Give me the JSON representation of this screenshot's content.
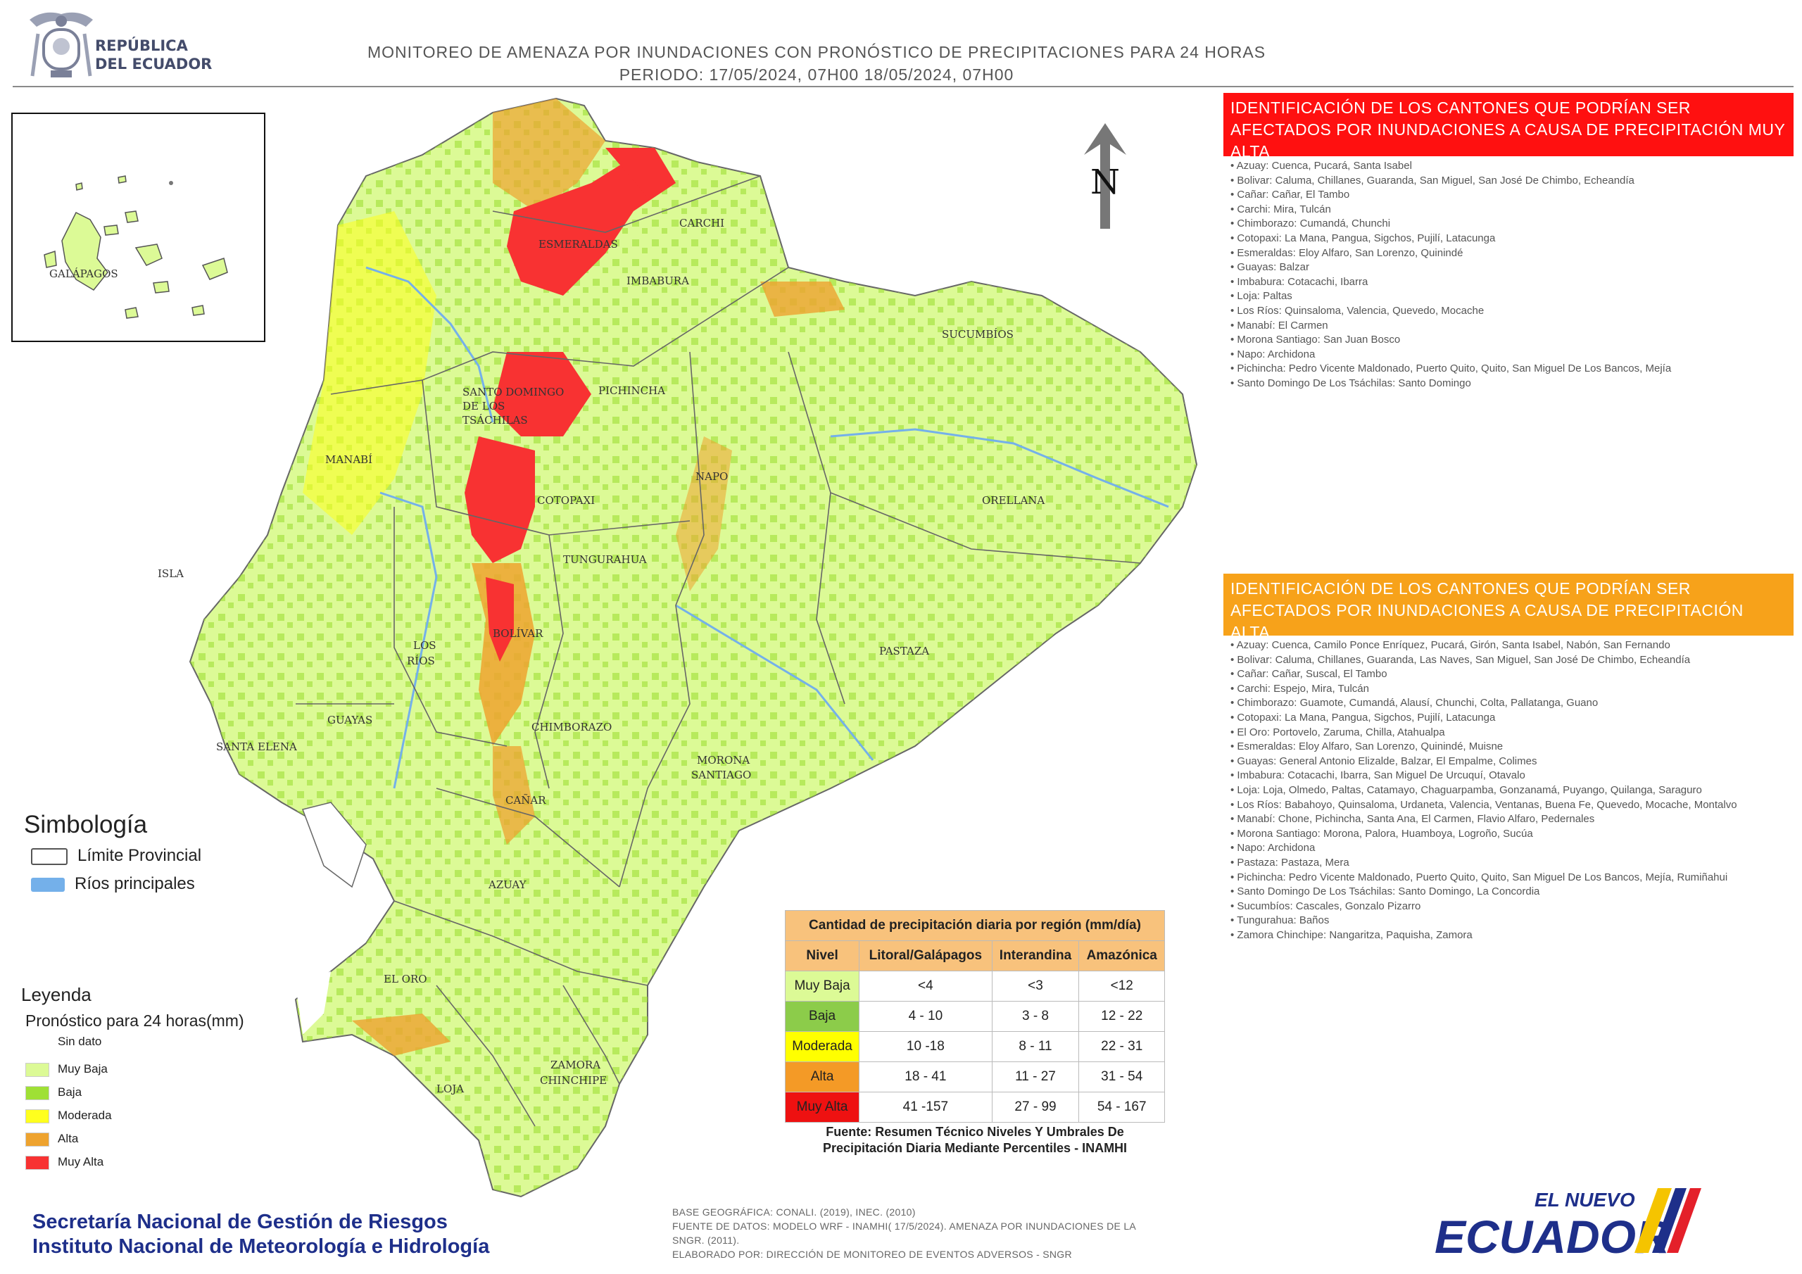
{
  "header": {
    "republic_line1": "REPÚBLICA",
    "republic_line2": "DEL ECUADOR",
    "title_line1": "MONITOREO DE AMENAZA POR INUNDACIONES  CON PRONÓSTICO DE  PRECIPITACIONES PARA 24 HORAS",
    "title_line2": "PERIODO: 17/05/2024, 07H00 18/05/2024, 07H00"
  },
  "map_labels": {
    "galapagos": "GALÁPAGOS",
    "isla": "ISLA",
    "esmeraldas": "ESMERALDAS",
    "carchi": "CARCHI",
    "imbabura": "IMBABURA",
    "sucumbios": "SUCUMBÍOS",
    "pichincha": "PICHINCHA",
    "santo_domingo_1": "SANTO DOMINGO",
    "santo_domingo_2": "DE LOS",
    "santo_domingo_3": "TSÁCHILAS",
    "manabi": "MANABÍ",
    "napo": "NAPO",
    "orellana": "ORELLANA",
    "cotopaxi": "COTOPAXI",
    "tungurahua": "TUNGURAHUA",
    "pastaza": "PASTAZA",
    "bolivar": "BOLÍVAR",
    "los_rios_1": "LOS",
    "los_rios_2": "RÍOS",
    "guayas": "GUAYAS",
    "santa_elena": "SANTA ELENA",
    "chimborazo": "CHIMBORAZO",
    "morona_1": "MORONA",
    "morona_2": "SANTIAGO",
    "canar": "CAÑAR",
    "azuay": "AZUAY",
    "el_oro": "EL ORO",
    "loja": "LOJA",
    "zamora_1": "ZAMORA",
    "zamora_2": "CHINCHIPE",
    "north": "N"
  },
  "muy_alta": {
    "heading": "IDENTIFICACIÓN DE LOS CANTONES QUE PODRÍAN SER AFECTADOS POR INUNDACIONES  A CAUSA DE PRECIPITACIÓN MUY ALTA",
    "items": [
      "Azuay: Cuenca, Pucará, Santa Isabel",
      "Bolivar: Caluma, Chillanes, Guaranda, San Miguel, San José De Chimbo, Echeandía",
      "Cañar: Cañar, El Tambo",
      "Carchi: Mira, Tulcán",
      "Chimborazo: Cumandá, Chunchi",
      "Cotopaxi: La Mana, Pangua, Sigchos, Pujilí, Latacunga",
      "Esmeraldas: Eloy Alfaro, San Lorenzo, Quinindé",
      "Guayas: Balzar",
      "Imbabura: Cotacachi, Ibarra",
      "Loja: Paltas",
      "Los Ríos: Quinsaloma, Valencia, Quevedo, Mocache",
      "Manabí: El Carmen",
      "Morona Santiago: San Juan Bosco",
      "Napo: Archidona",
      "Pichincha: Pedro Vicente Maldonado, Puerto Quito, Quito, San Miguel De Los Bancos, Mejía",
      "Santo Domingo De Los Tsáchilas: Santo Domingo"
    ]
  },
  "alta": {
    "heading": "IDENTIFICACIÓN DE LOS CANTONES QUE  PODRÍAN SER AFECTADOS POR INUNDACIONES  A CAUSA DE PRECIPITACIÓN  ALTA",
    "items": [
      "Azuay: Cuenca, Camilo Ponce Enríquez, Pucará, Girón, Santa Isabel, Nabón, San Fernando",
      "Bolivar: Caluma, Chillanes, Guaranda, Las Naves, San Miguel, San José De Chimbo, Echeandía",
      "Cañar: Cañar, Suscal, El Tambo",
      "Carchi: Espejo, Mira, Tulcán",
      "Chimborazo: Guamote, Cumandá, Alausí, Chunchi, Colta, Pallatanga, Guano",
      "Cotopaxi: La Mana, Pangua, Sigchos, Pujilí, Latacunga",
      "El Oro: Portovelo, Zaruma, Chilla, Atahualpa",
      "Esmeraldas: Eloy Alfaro, San Lorenzo, Quinindé, Muisne",
      "Guayas: General Antonio Elizalde, Balzar, El Empalme, Colimes",
      "Imbabura: Cotacachi, Ibarra, San Miguel De Urcuquí, Otavalo",
      "Loja: Loja, Olmedo, Paltas, Catamayo, Chaguarpamba, Gonzanamá, Puyango, Quilanga, Saraguro",
      "Los Ríos: Babahoyo, Quinsaloma, Urdaneta, Valencia, Ventanas, Buena Fe, Quevedo, Mocache, Montalvo",
      "Manabí: Chone, Pichincha, Santa Ana, El Carmen, Flavio Alfaro, Pedernales",
      "Morona Santiago: Morona, Palora, Huamboya, Logroño, Sucúa",
      "Napo: Archidona",
      "Pastaza: Pastaza, Mera",
      "Pichincha: Pedro Vicente Maldonado, Puerto Quito, Quito, San Miguel De Los Bancos, Mejía, Rumiñahui",
      "Santo Domingo De Los Tsáchilas: Santo Domingo, La Concordia",
      "Sucumbíos: Cascales, Gonzalo Pizarro",
      "Tungurahua: Baños",
      "Zamora Chinchipe: Nangaritza, Paquisha, Zamora"
    ]
  },
  "simbologia": {
    "title": "Simbología",
    "limite": "Límite Provincial",
    "rios": "Ríos principales",
    "rios_color": "#74b0ea"
  },
  "leyenda": {
    "title": "Leyenda",
    "subtitle": "Pronóstico para 24 horas(mm)",
    "items": [
      {
        "label": "Sin dato",
        "color": "#ffffff"
      },
      {
        "label": "Muy Baja",
        "color": "#dcfa96"
      },
      {
        "label": "Baja",
        "color": "#9fe035"
      },
      {
        "label": "Moderada",
        "color": "#ffff1e"
      },
      {
        "label": "Alta",
        "color": "#eea32f"
      },
      {
        "label": "Muy Alta",
        "color": "#f83232"
      }
    ]
  },
  "precip_table": {
    "title": "Cantidad de precipitación diaria por región (mm/día)",
    "headers": [
      "Nivel",
      "Litoral/Galápagos",
      "Interandina",
      "Amazónica"
    ],
    "rows": [
      {
        "nivel": "Muy Baja",
        "color": "#dcfa96",
        "litoral": "<4",
        "interandina": "<3",
        "amazonica": "<12"
      },
      {
        "nivel": "Baja",
        "color": "#8ccc4a",
        "litoral": "4 - 10",
        "interandina": "3 - 8",
        "amazonica": "12 - 22"
      },
      {
        "nivel": "Moderada",
        "color": "#ffff00",
        "litoral": "10 -18",
        "interandina": "8 - 11",
        "amazonica": "22 - 31"
      },
      {
        "nivel": "Alta",
        "color": "#f49a26",
        "litoral": "18 - 41",
        "interandina": "11 - 27",
        "amazonica": "31 - 54"
      },
      {
        "nivel": "Muy Alta",
        "color": "#ee1111",
        "litoral": "41 -157",
        "interandina": "27 - 99",
        "amazonica": "54 - 167"
      }
    ],
    "source_line1": "Fuente: Resumen Técnico Niveles Y Umbrales De",
    "source_line2": "Precipitación Diaria Mediante Percentiles - INAMHI"
  },
  "footer": {
    "sngr": "Secretaría Nacional de Gestión de Riesgos",
    "inamhi": "Instituto Nacional de Meteorología e Hidrología",
    "base_line1": "BASE GEOGRÁFICA: CONALI. (2019), INEC. (2010)",
    "base_line2": "FUENTE DE DATOS: MODELO WRF - INAMHI( 17/5/2024).  AMENAZA POR INUNDACIONES DE LA",
    "base_line3": "SNGR. (2011).",
    "base_line4": "ELABORADO POR: DIRECCIÓN DE MONITOREO DE EVENTOS ADVERSOS - SNGR",
    "logo_small": "EL NUEVO",
    "logo_big": "ECUADOR"
  }
}
